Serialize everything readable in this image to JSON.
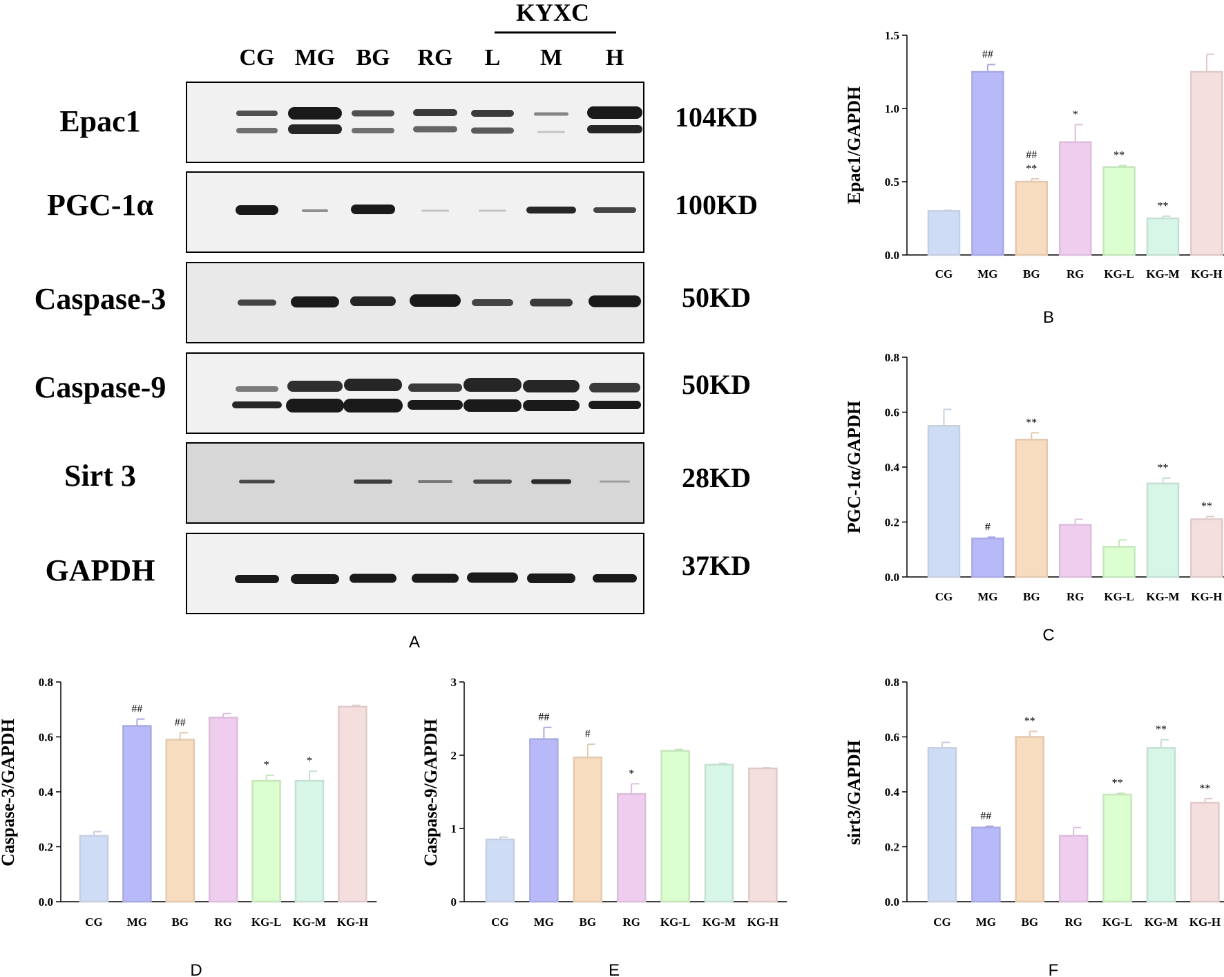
{
  "western_blot": {
    "panel_label": "A",
    "group_header": "KYXC",
    "lanes": [
      "CG",
      "MG",
      "BG",
      "RG",
      "L",
      "M",
      "H"
    ],
    "proteins": [
      {
        "name": "Epac1",
        "size": "104KD"
      },
      {
        "name": "PGC-1α",
        "size": "100KD"
      },
      {
        "name": "Caspase-3",
        "size": "50KD"
      },
      {
        "name": "Caspase-9",
        "size": "50KD"
      },
      {
        "name": "Sirt 3",
        "size": "28KD"
      },
      {
        "name": "GAPDH",
        "size": "37KD"
      }
    ]
  },
  "colors": {
    "bar_fills": [
      "#cfdcf5",
      "#b8b9f8",
      "#f7dcc0",
      "#eecdee",
      "#dcffcf",
      "#d8f6e8",
      "#f5dede"
    ],
    "bar_strokes": [
      "#c5cfe0",
      "#a9a9e4",
      "#e2c9b0",
      "#dcbddc",
      "#c5e6bb",
      "#c4e0d3",
      "#e0c9c9"
    ],
    "axis": "#000000",
    "blot_light": "#f1f1f1",
    "blot_gray": "#d7d7d7",
    "band": "#1a1a1a"
  },
  "chart_data": [
    {
      "panel_label": "B",
      "type": "bar",
      "categories": [
        "CG",
        "MG",
        "BG",
        "RG",
        "KG-L",
        "KG-M",
        "KG-H"
      ],
      "values": [
        0.3,
        1.25,
        0.5,
        0.77,
        0.6,
        0.25,
        1.25
      ],
      "errors": [
        0.005,
        0.05,
        0.02,
        0.12,
        0.01,
        0.015,
        0.12
      ],
      "annotations": [
        "",
        "##",
        "##\n**",
        "*",
        "**",
        "**",
        ""
      ],
      "ylabel": "Epac1/GAPDH",
      "ylim": [
        0,
        1.5
      ],
      "yticks": [
        0,
        0.5,
        1.0,
        1.5
      ],
      "ytick_labels": [
        "0.0",
        "0.5",
        "1.0",
        "1.5"
      ]
    },
    {
      "panel_label": "C",
      "type": "bar",
      "categories": [
        "CG",
        "MG",
        "BG",
        "RG",
        "KG-L",
        "KG-M",
        "KG-H"
      ],
      "values": [
        0.55,
        0.14,
        0.5,
        0.19,
        0.11,
        0.34,
        0.21
      ],
      "errors": [
        0.06,
        0.005,
        0.025,
        0.02,
        0.025,
        0.02,
        0.01
      ],
      "annotations": [
        "",
        "#",
        "**",
        "",
        "",
        "**",
        "**"
      ],
      "ylabel": "PGC-1α/GAPDH",
      "ylim": [
        0,
        0.8
      ],
      "yticks": [
        0,
        0.2,
        0.4,
        0.6,
        0.8
      ],
      "ytick_labels": [
        "0.0",
        "0.2",
        "0.4",
        "0.6",
        "0.8"
      ]
    },
    {
      "panel_label": "D",
      "type": "bar",
      "categories": [
        "CG",
        "MG",
        "BG",
        "RG",
        "KG-L",
        "KG-M",
        "KG-H"
      ],
      "values": [
        0.24,
        0.64,
        0.59,
        0.67,
        0.44,
        0.44,
        0.71
      ],
      "errors": [
        0.015,
        0.025,
        0.025,
        0.015,
        0.02,
        0.035,
        0.005
      ],
      "annotations": [
        "",
        "##",
        "##",
        "",
        "*",
        "*",
        ""
      ],
      "ylabel": "Caspase-3/GAPDH",
      "ylim": [
        0,
        0.8
      ],
      "yticks": [
        0,
        0.2,
        0.4,
        0.6,
        0.8
      ],
      "ytick_labels": [
        "0.0",
        "0.2",
        "0.4",
        "0.6",
        "0.8"
      ]
    },
    {
      "panel_label": "E",
      "type": "bar",
      "categories": [
        "CG",
        "MG",
        "BG",
        "RG",
        "KG-L",
        "KG-M",
        "KG-H"
      ],
      "values": [
        0.85,
        2.22,
        1.97,
        1.47,
        2.06,
        1.87,
        1.82
      ],
      "errors": [
        0.03,
        0.16,
        0.18,
        0.14,
        0.02,
        0.02,
        0.01
      ],
      "annotations": [
        "",
        "##",
        "#",
        "*",
        "",
        "",
        ""
      ],
      "ylabel": "Caspase-9/GAPDH",
      "ylim": [
        0,
        3
      ],
      "yticks": [
        0,
        1,
        2,
        3
      ],
      "ytick_labels": [
        "0",
        "1",
        "2",
        "3"
      ]
    },
    {
      "panel_label": "F",
      "type": "bar",
      "categories": [
        "CG",
        "MG",
        "BG",
        "RG",
        "KG-L",
        "KG-M",
        "KG-H"
      ],
      "values": [
        0.56,
        0.27,
        0.6,
        0.24,
        0.39,
        0.56,
        0.36
      ],
      "errors": [
        0.02,
        0.005,
        0.02,
        0.03,
        0.005,
        0.03,
        0.015
      ],
      "annotations": [
        "",
        "##",
        "**",
        "",
        "**",
        "**",
        "**"
      ],
      "ylabel": "sirt3/GAPDH",
      "ylim": [
        0,
        0.8
      ],
      "yticks": [
        0,
        0.2,
        0.4,
        0.6,
        0.8
      ],
      "ytick_labels": [
        "0.0",
        "0.2",
        "0.4",
        "0.6",
        "0.8"
      ]
    }
  ]
}
